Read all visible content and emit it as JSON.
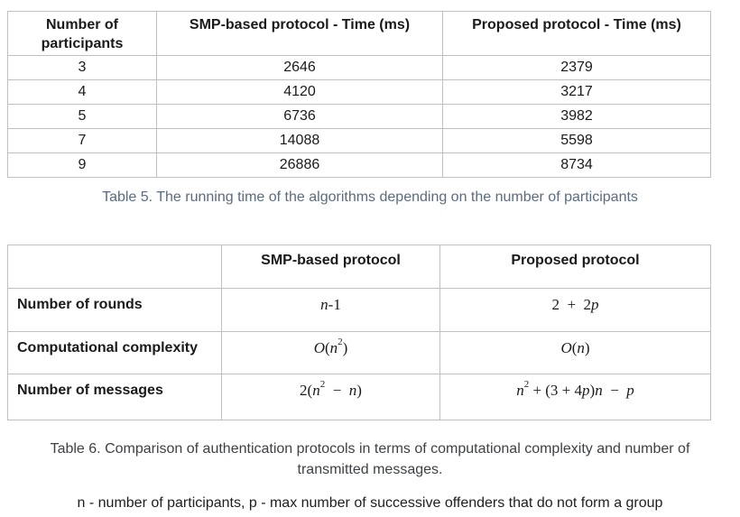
{
  "colors": {
    "page_background": "#ffffff",
    "table_border": "#c0c0c0",
    "table_text": "#1a1a1a",
    "table5_caption": "#5b6b80",
    "table6_caption": "#3d4145",
    "note_text": "#1d1e20"
  },
  "table5": {
    "columns": [
      "Number of participants",
      "SMP-based protocol - Time (ms)",
      "Proposed protocol - Time (ms)"
    ],
    "rows": [
      [
        "3",
        "2646",
        "2379"
      ],
      [
        "4",
        "4120",
        "3217"
      ],
      [
        "5",
        "6736",
        "3982"
      ],
      [
        "7",
        "14088",
        "5598"
      ],
      [
        "9",
        "26886",
        "8734"
      ]
    ],
    "caption": "Table 5. The running time of the algorithms depending on the number of participants"
  },
  "table6": {
    "columns": [
      "",
      "SMP-based protocol",
      "Proposed protocol"
    ],
    "rows": [
      {
        "label": "Number of rounds",
        "smp": "n-1",
        "proposed": "2  +  2p"
      },
      {
        "label": "Computational complexity",
        "smp": "O(n^2)",
        "proposed": "O(n)"
      },
      {
        "label": "Number of messages",
        "smp": "2(n^2  −  n)",
        "proposed": "n^2 + (3 + 4p)n  −  p"
      }
    ],
    "caption": "Table 6. Comparison of authentication protocols in terms of computational complexity and number of transmitted messages."
  },
  "note": "n - number of participants, p - max number of successive offenders that do not form a group"
}
